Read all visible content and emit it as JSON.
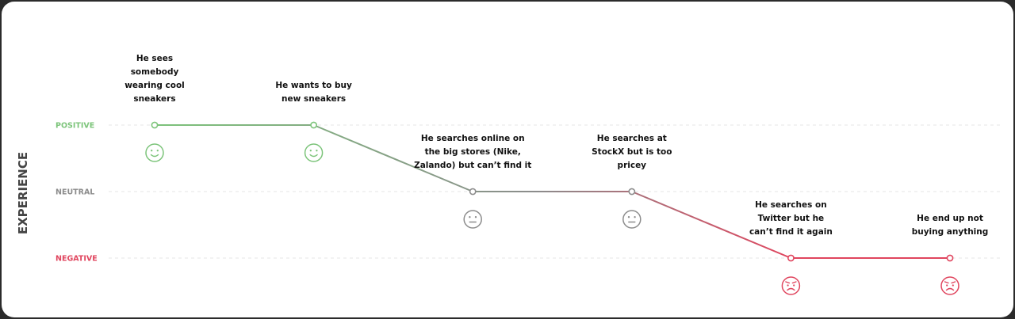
{
  "chart_data": {
    "type": "line",
    "title": "",
    "ylabel": "EXPERIENCE",
    "xlabel": "",
    "y_levels": [
      {
        "label": "POSITIVE",
        "value": 1,
        "color": "#7cc47a"
      },
      {
        "label": "NEUTRAL",
        "value": 0,
        "color": "#8c8c8c"
      },
      {
        "label": "NEGATIVE",
        "value": -1,
        "color": "#e0455e"
      }
    ],
    "ylim": [
      -1,
      1
    ],
    "grid": true,
    "line_gradient": [
      "#7cc47a",
      "#8c8c8c",
      "#e0455e"
    ],
    "points": [
      {
        "x": 1,
        "y": 1,
        "mood": "happy",
        "label": [
          "He sees",
          "somebody",
          "wearing cool",
          "sneakers"
        ]
      },
      {
        "x": 2,
        "y": 1,
        "mood": "happy",
        "label": [
          "He wants to buy",
          "new sneakers"
        ]
      },
      {
        "x": 3,
        "y": 0,
        "mood": "neutral",
        "label": [
          "He searches online on",
          "the big stores (Nike,",
          "Zalando) but can’t find it"
        ]
      },
      {
        "x": 4,
        "y": 0,
        "mood": "neutral",
        "label": [
          "He searches at",
          "StockX but is too",
          "pricey"
        ]
      },
      {
        "x": 5,
        "y": -1,
        "mood": "sad",
        "label": [
          "He searches on",
          "Twitter but he",
          "can’t find it again"
        ]
      },
      {
        "x": 6,
        "y": -1,
        "mood": "sad",
        "label": [
          "He end up not",
          "buying anything"
        ]
      }
    ],
    "mood_colors": {
      "happy": "#7cc47a",
      "neutral": "#8c8c8c",
      "sad": "#e0455e"
    }
  }
}
